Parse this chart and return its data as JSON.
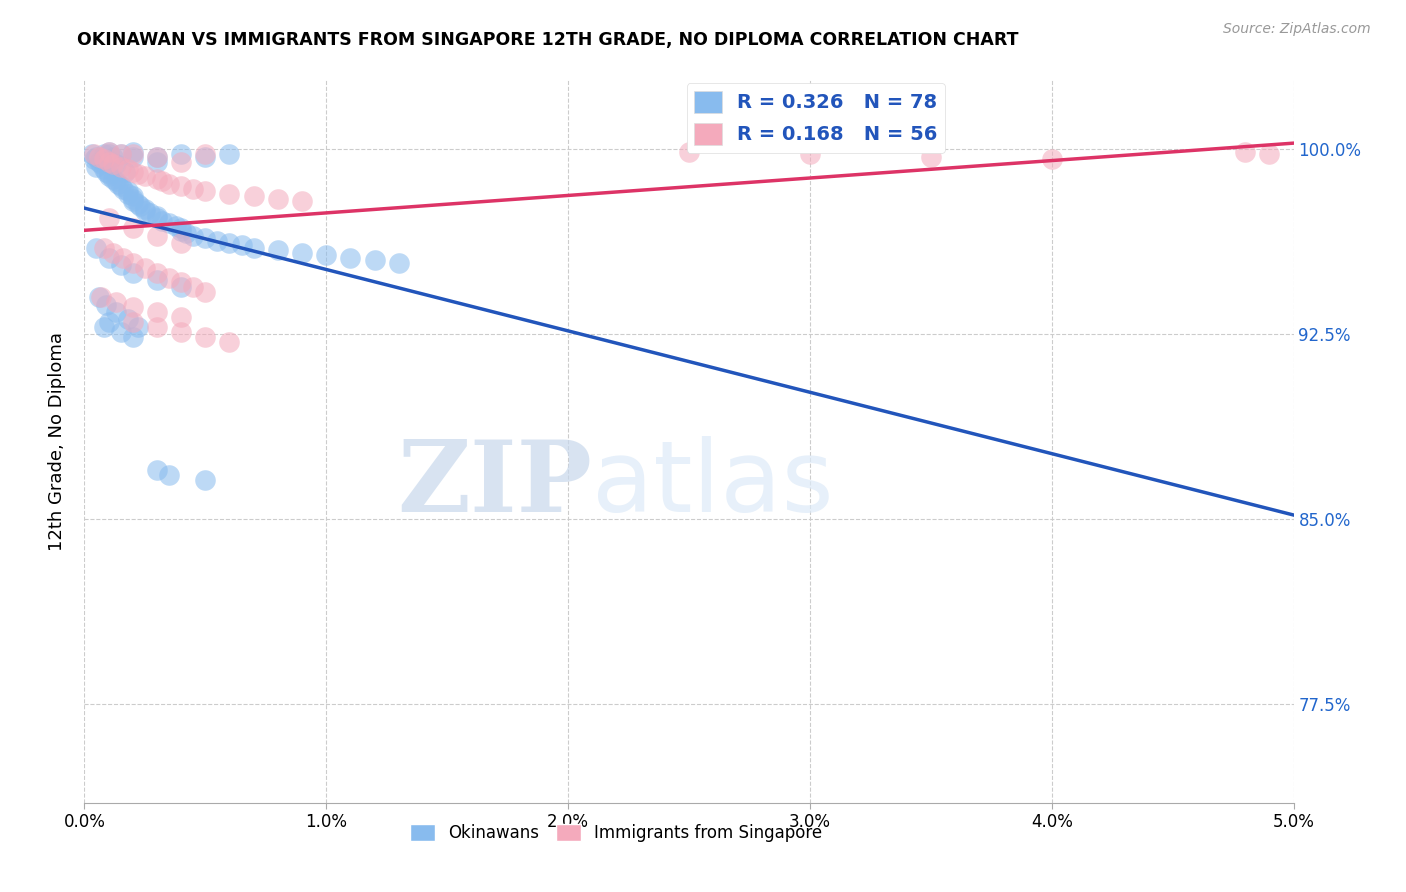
{
  "title": "OKINAWAN VS IMMIGRANTS FROM SINGAPORE 12TH GRADE, NO DIPLOMA CORRELATION CHART",
  "source": "Source: ZipAtlas.com",
  "ylabel": "12th Grade, No Diploma",
  "ytick_labels": [
    "100.0%",
    "92.5%",
    "85.0%",
    "77.5%"
  ],
  "ytick_values": [
    1.0,
    0.925,
    0.85,
    0.775
  ],
  "xmin": 0.0,
  "xmax": 0.05,
  "ymin": 0.735,
  "ymax": 1.028,
  "R_blue": 0.326,
  "N_blue": 78,
  "R_pink": 0.168,
  "N_pink": 56,
  "blue_color": "#88BBEE",
  "pink_color": "#F4AABC",
  "trend_blue": "#2255BB",
  "trend_pink": "#DD3366",
  "legend_text_color": "#2255BB",
  "watermark_zip": "ZIP",
  "watermark_atlas": "atlas",
  "blue_scatter_x": [
    0.0003,
    0.0004,
    0.0005,
    0.0005,
    0.0006,
    0.0007,
    0.0008,
    0.0008,
    0.0009,
    0.001,
    0.001,
    0.001,
    0.001,
    0.001,
    0.0012,
    0.0012,
    0.0013,
    0.0013,
    0.0014,
    0.0015,
    0.0015,
    0.0016,
    0.0017,
    0.0018,
    0.0018,
    0.002,
    0.002,
    0.002,
    0.002,
    0.002,
    0.0022,
    0.0023,
    0.0025,
    0.0025,
    0.0027,
    0.003,
    0.003,
    0.003,
    0.003,
    0.0032,
    0.0035,
    0.0038,
    0.004,
    0.004,
    0.004,
    0.0042,
    0.0045,
    0.005,
    0.005,
    0.0055,
    0.006,
    0.006,
    0.0065,
    0.007,
    0.008,
    0.009,
    0.01,
    0.011,
    0.012,
    0.013,
    0.0005,
    0.001,
    0.0015,
    0.002,
    0.003,
    0.004,
    0.001,
    0.0008,
    0.0015,
    0.002,
    0.0006,
    0.0009,
    0.0013,
    0.0018,
    0.0022,
    0.003,
    0.0035,
    0.005
  ],
  "blue_scatter_y": [
    0.998,
    0.996,
    0.997,
    0.993,
    0.995,
    0.994,
    0.998,
    0.992,
    0.991,
    0.999,
    0.998,
    0.996,
    0.99,
    0.989,
    0.997,
    0.988,
    0.994,
    0.987,
    0.986,
    0.998,
    0.985,
    0.984,
    0.991,
    0.983,
    0.982,
    0.999,
    0.997,
    0.981,
    0.98,
    0.979,
    0.978,
    0.977,
    0.976,
    0.975,
    0.974,
    0.997,
    0.995,
    0.973,
    0.972,
    0.971,
    0.97,
    0.969,
    0.998,
    0.968,
    0.967,
    0.966,
    0.965,
    0.997,
    0.964,
    0.963,
    0.998,
    0.962,
    0.961,
    0.96,
    0.959,
    0.958,
    0.957,
    0.956,
    0.955,
    0.954,
    0.96,
    0.956,
    0.953,
    0.95,
    0.947,
    0.944,
    0.93,
    0.928,
    0.926,
    0.924,
    0.94,
    0.937,
    0.934,
    0.931,
    0.928,
    0.87,
    0.868,
    0.866
  ],
  "pink_scatter_x": [
    0.0004,
    0.0006,
    0.0008,
    0.001,
    0.001,
    0.0012,
    0.0015,
    0.0015,
    0.0018,
    0.002,
    0.002,
    0.0022,
    0.0025,
    0.003,
    0.003,
    0.0032,
    0.0035,
    0.004,
    0.004,
    0.0045,
    0.005,
    0.005,
    0.006,
    0.007,
    0.008,
    0.009,
    0.001,
    0.002,
    0.003,
    0.004,
    0.0008,
    0.0012,
    0.0016,
    0.002,
    0.0025,
    0.003,
    0.0035,
    0.004,
    0.0045,
    0.005,
    0.002,
    0.003,
    0.004,
    0.005,
    0.006,
    0.0007,
    0.0013,
    0.002,
    0.003,
    0.004,
    0.025,
    0.03,
    0.035,
    0.04,
    0.048,
    0.049
  ],
  "pink_scatter_y": [
    0.998,
    0.997,
    0.996,
    0.999,
    0.995,
    0.994,
    0.998,
    0.993,
    0.992,
    0.998,
    0.991,
    0.99,
    0.989,
    0.997,
    0.988,
    0.987,
    0.986,
    0.995,
    0.985,
    0.984,
    0.998,
    0.983,
    0.982,
    0.981,
    0.98,
    0.979,
    0.972,
    0.968,
    0.965,
    0.962,
    0.96,
    0.958,
    0.956,
    0.954,
    0.952,
    0.95,
    0.948,
    0.946,
    0.944,
    0.942,
    0.93,
    0.928,
    0.926,
    0.924,
    0.922,
    0.94,
    0.938,
    0.936,
    0.934,
    0.932,
    0.999,
    0.998,
    0.997,
    0.996,
    0.999,
    0.998
  ]
}
